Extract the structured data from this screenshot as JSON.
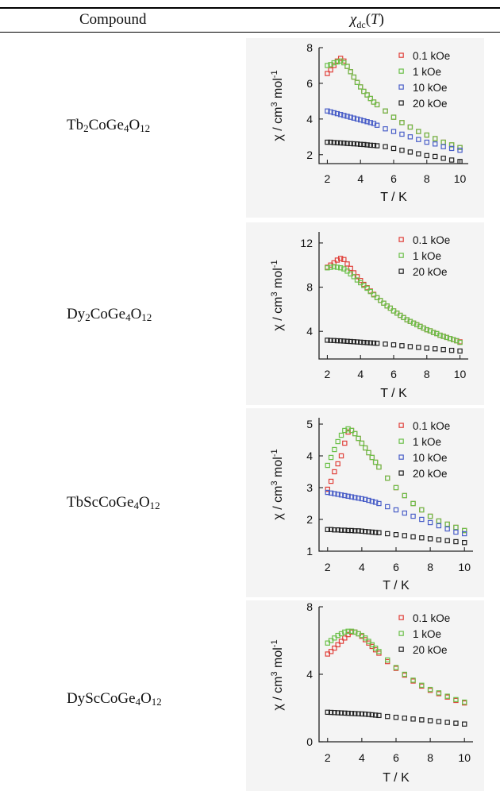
{
  "table": {
    "header": {
      "compound": "Compound",
      "chi_symbol": "χ",
      "chi_sub": "dc",
      "chi_arg_open": "(",
      "chi_arg_var": "T",
      "chi_arg_close": ")"
    },
    "rows": [
      {
        "compound": [
          "Tb",
          "2",
          "CoGe",
          "4",
          "O",
          "12"
        ]
      },
      {
        "compound": [
          "Dy",
          "2",
          "CoGe",
          "4",
          "O",
          "12"
        ]
      },
      {
        "compound": [
          "TbScCoGe",
          "4",
          "O",
          "12"
        ]
      },
      {
        "compound": [
          "DyScCoGe",
          "4",
          "O",
          "12"
        ]
      }
    ]
  },
  "axis_text": {
    "xlabel": "T / K",
    "ylabel_main": "χ / cm",
    "ylabel_sup1": "3",
    "ylabel_mid": " mol",
    "ylabel_sup2": "-1"
  },
  "colors": {
    "0.1 kOe": "#e0403a",
    "1 kOe": "#6cc04a",
    "10 kOe": "#4a5fc8",
    "20 kOe": "#222222"
  },
  "chart_data": [
    {
      "type": "scatter",
      "xlabel": "T / K",
      "ylabel": "χ / cm3 mol-1",
      "xlim": [
        1.5,
        10.5
      ],
      "ylim": [
        1.5,
        8
      ],
      "xticks": [
        2,
        4,
        6,
        8,
        10
      ],
      "yticks": [
        2,
        4,
        6,
        8
      ],
      "legend_position": "top-right",
      "series": [
        {
          "name": "0.1 kOe",
          "color": "#e0403a",
          "x": [
            2,
            2.2,
            2.4,
            2.6,
            2.8,
            3,
            3.2,
            3.4,
            3.6,
            3.8,
            4,
            4.2,
            4.4,
            4.6,
            4.8,
            5,
            5.5,
            6,
            6.5,
            7,
            7.5,
            8,
            8.5,
            9,
            9.5,
            10
          ],
          "y": [
            6.55,
            6.75,
            7.0,
            7.25,
            7.4,
            7.25,
            6.95,
            6.65,
            6.35,
            6.05,
            5.8,
            5.55,
            5.35,
            5.15,
            4.95,
            4.8,
            4.45,
            4.1,
            3.8,
            3.55,
            3.3,
            3.1,
            2.9,
            2.7,
            2.55,
            2.4
          ]
        },
        {
          "name": "1 kOe",
          "color": "#6cc04a",
          "x": [
            2,
            2.2,
            2.4,
            2.6,
            2.8,
            3,
            3.2,
            3.4,
            3.6,
            3.8,
            4,
            4.2,
            4.4,
            4.6,
            4.8,
            5,
            5.5,
            6,
            6.5,
            7,
            7.5,
            8,
            8.5,
            9,
            9.5,
            10
          ],
          "y": [
            7.0,
            7.05,
            7.15,
            7.2,
            7.25,
            7.15,
            6.95,
            6.65,
            6.35,
            6.05,
            5.8,
            5.55,
            5.35,
            5.15,
            4.95,
            4.8,
            4.45,
            4.1,
            3.8,
            3.55,
            3.3,
            3.1,
            2.9,
            2.7,
            2.55,
            2.4
          ]
        },
        {
          "name": "10 kOe",
          "color": "#4a5fc8",
          "x": [
            2,
            2.2,
            2.4,
            2.6,
            2.8,
            3,
            3.2,
            3.4,
            3.6,
            3.8,
            4,
            4.2,
            4.4,
            4.6,
            4.8,
            5,
            5.5,
            6,
            6.5,
            7,
            7.5,
            8,
            8.5,
            9,
            9.5,
            10
          ],
          "y": [
            4.45,
            4.4,
            4.35,
            4.3,
            4.25,
            4.2,
            4.15,
            4.1,
            4.05,
            4.0,
            3.95,
            3.9,
            3.85,
            3.8,
            3.75,
            3.65,
            3.45,
            3.3,
            3.15,
            3.0,
            2.85,
            2.7,
            2.6,
            2.45,
            2.35,
            2.25
          ]
        },
        {
          "name": "20 kOe",
          "color": "#222222",
          "x": [
            2,
            2.2,
            2.4,
            2.6,
            2.8,
            3,
            3.2,
            3.4,
            3.6,
            3.8,
            4,
            4.2,
            4.4,
            4.6,
            4.8,
            5,
            5.5,
            6,
            6.5,
            7,
            7.5,
            8,
            8.5,
            9,
            9.5,
            10
          ],
          "y": [
            2.7,
            2.7,
            2.68,
            2.67,
            2.66,
            2.65,
            2.63,
            2.62,
            2.61,
            2.6,
            2.58,
            2.57,
            2.55,
            2.53,
            2.52,
            2.5,
            2.45,
            2.35,
            2.25,
            2.15,
            2.05,
            1.95,
            1.9,
            1.8,
            1.7,
            1.62
          ]
        }
      ]
    },
    {
      "type": "scatter",
      "xlabel": "T / K",
      "ylabel": "χ / cm3 mol-1",
      "xlim": [
        1.5,
        10.5
      ],
      "ylim": [
        1.5,
        13
      ],
      "xticks": [
        2,
        4,
        6,
        8,
        10
      ],
      "yticks": [
        4,
        8,
        12
      ],
      "legend_position": "top-right",
      "series": [
        {
          "name": "0.1 kOe",
          "color": "#e0403a",
          "x": [
            2,
            2.2,
            2.4,
            2.6,
            2.8,
            3,
            3.2,
            3.4,
            3.6,
            3.8,
            4,
            4.2,
            4.4,
            4.6,
            4.8,
            5,
            5.2,
            5.4,
            5.6,
            5.8,
            6,
            6.2,
            6.4,
            6.6,
            6.8,
            7,
            7.2,
            7.4,
            7.6,
            7.8,
            8,
            8.2,
            8.4,
            8.6,
            8.8,
            9,
            9.2,
            9.4,
            9.6,
            9.8,
            10
          ],
          "y": [
            9.8,
            10.0,
            10.2,
            10.45,
            10.6,
            10.5,
            10.1,
            9.7,
            9.3,
            8.95,
            8.6,
            8.25,
            7.95,
            7.65,
            7.35,
            7.05,
            6.8,
            6.55,
            6.3,
            6.1,
            5.85,
            5.65,
            5.45,
            5.25,
            5.05,
            4.9,
            4.75,
            4.6,
            4.45,
            4.3,
            4.15,
            4.05,
            3.9,
            3.8,
            3.65,
            3.55,
            3.45,
            3.35,
            3.25,
            3.15,
            3.05
          ]
        },
        {
          "name": "1 kOe",
          "color": "#6cc04a",
          "x": [
            2,
            2.2,
            2.4,
            2.6,
            2.8,
            3,
            3.2,
            3.4,
            3.6,
            3.8,
            4,
            4.2,
            4.4,
            4.6,
            4.8,
            5,
            5.2,
            5.4,
            5.6,
            5.8,
            6,
            6.2,
            6.4,
            6.6,
            6.8,
            7,
            7.2,
            7.4,
            7.6,
            7.8,
            8,
            8.2,
            8.4,
            8.6,
            8.8,
            9,
            9.2,
            9.4,
            9.6,
            9.8,
            10
          ],
          "y": [
            9.75,
            9.8,
            9.85,
            9.8,
            9.75,
            9.65,
            9.45,
            9.2,
            8.95,
            8.65,
            8.4,
            8.15,
            7.9,
            7.6,
            7.3,
            7.05,
            6.8,
            6.55,
            6.3,
            6.1,
            5.85,
            5.65,
            5.45,
            5.25,
            5.05,
            4.9,
            4.75,
            4.6,
            4.45,
            4.3,
            4.15,
            4.05,
            3.9,
            3.8,
            3.65,
            3.55,
            3.45,
            3.35,
            3.25,
            3.15,
            3.0
          ]
        },
        {
          "name": "20 kOe",
          "color": "#222222",
          "x": [
            2,
            2.2,
            2.4,
            2.6,
            2.8,
            3,
            3.2,
            3.4,
            3.6,
            3.8,
            4,
            4.2,
            4.4,
            4.6,
            4.8,
            5,
            5.5,
            6,
            6.5,
            7,
            7.5,
            8,
            8.5,
            9,
            9.5,
            10
          ],
          "y": [
            3.2,
            3.18,
            3.17,
            3.15,
            3.14,
            3.12,
            3.1,
            3.08,
            3.06,
            3.04,
            3.02,
            3.0,
            2.98,
            2.96,
            2.94,
            2.92,
            2.85,
            2.78,
            2.7,
            2.62,
            2.55,
            2.48,
            2.42,
            2.35,
            2.28,
            2.22
          ]
        }
      ]
    },
    {
      "type": "scatter",
      "xlabel": "T / K",
      "ylabel": "χ / cm3 mol-1",
      "xlim": [
        1.5,
        10.5
      ],
      "ylim": [
        1,
        5.2
      ],
      "xticks": [
        2,
        4,
        6,
        8,
        10
      ],
      "yticks": [
        1,
        2,
        3,
        4,
        5
      ],
      "legend_position": "top-right",
      "series": [
        {
          "name": "0.1 kOe",
          "color": "#e0403a",
          "x": [
            2,
            2.2,
            2.4,
            2.6,
            2.8,
            3,
            3.2,
            3.4,
            3.6,
            3.8,
            4,
            4.2,
            4.4,
            4.6,
            4.8,
            5,
            5.5,
            6,
            6.5,
            7,
            7.5,
            8,
            8.5,
            9,
            9.5,
            10
          ],
          "y": [
            2.95,
            3.2,
            3.5,
            3.75,
            4.0,
            4.4,
            4.75,
            4.8,
            4.7,
            4.55,
            4.4,
            4.25,
            4.1,
            3.95,
            3.8,
            3.65,
            3.3,
            3.0,
            2.75,
            2.5,
            2.3,
            2.1,
            1.95,
            1.85,
            1.75,
            1.65
          ]
        },
        {
          "name": "1 kOe",
          "color": "#6cc04a",
          "x": [
            2,
            2.2,
            2.4,
            2.6,
            2.8,
            3,
            3.2,
            3.4,
            3.6,
            3.8,
            4,
            4.2,
            4.4,
            4.6,
            4.8,
            5,
            5.5,
            6,
            6.5,
            7,
            7.5,
            8,
            8.5,
            9,
            9.5,
            10
          ],
          "y": [
            3.7,
            3.95,
            4.2,
            4.45,
            4.65,
            4.8,
            4.85,
            4.8,
            4.7,
            4.55,
            4.4,
            4.25,
            4.1,
            3.95,
            3.8,
            3.65,
            3.3,
            3.0,
            2.75,
            2.5,
            2.3,
            2.1,
            1.95,
            1.85,
            1.75,
            1.65
          ]
        },
        {
          "name": "10 kOe",
          "color": "#4a5fc8",
          "x": [
            2,
            2.2,
            2.4,
            2.6,
            2.8,
            3,
            3.2,
            3.4,
            3.6,
            3.8,
            4,
            4.2,
            4.4,
            4.6,
            4.8,
            5,
            5.5,
            6,
            6.5,
            7,
            7.5,
            8,
            8.5,
            9,
            9.5,
            10
          ],
          "y": [
            2.85,
            2.83,
            2.81,
            2.79,
            2.77,
            2.75,
            2.73,
            2.71,
            2.69,
            2.67,
            2.65,
            2.63,
            2.6,
            2.57,
            2.54,
            2.5,
            2.4,
            2.3,
            2.2,
            2.1,
            2.0,
            1.9,
            1.8,
            1.7,
            1.6,
            1.55
          ]
        },
        {
          "name": "20 kOe",
          "color": "#222222",
          "x": [
            2,
            2.2,
            2.4,
            2.6,
            2.8,
            3,
            3.2,
            3.4,
            3.6,
            3.8,
            4,
            4.2,
            4.4,
            4.6,
            4.8,
            5,
            5.5,
            6,
            6.5,
            7,
            7.5,
            8,
            8.5,
            9,
            9.5,
            10
          ],
          "y": [
            1.68,
            1.68,
            1.67,
            1.67,
            1.66,
            1.66,
            1.65,
            1.65,
            1.64,
            1.64,
            1.63,
            1.62,
            1.61,
            1.6,
            1.59,
            1.58,
            1.55,
            1.52,
            1.49,
            1.45,
            1.42,
            1.39,
            1.36,
            1.33,
            1.3,
            1.27
          ]
        }
      ]
    },
    {
      "type": "scatter",
      "xlabel": "T / K",
      "ylabel": "χ / cm3 mol-1",
      "xlim": [
        1.5,
        10.5
      ],
      "ylim": [
        0,
        8
      ],
      "xticks": [
        2,
        4,
        6,
        8,
        10
      ],
      "yticks": [
        0,
        4,
        8
      ],
      "legend_position": "top-right",
      "series": [
        {
          "name": "0.1 kOe",
          "color": "#e0403a",
          "x": [
            2,
            2.2,
            2.4,
            2.6,
            2.8,
            3,
            3.2,
            3.4,
            3.6,
            3.8,
            4,
            4.2,
            4.4,
            4.6,
            4.8,
            5,
            5.5,
            6,
            6.5,
            7,
            7.5,
            8,
            8.5,
            9,
            9.5,
            10
          ],
          "y": [
            5.2,
            5.35,
            5.55,
            5.75,
            5.95,
            6.15,
            6.35,
            6.5,
            6.5,
            6.4,
            6.25,
            6.05,
            5.85,
            5.65,
            5.45,
            5.25,
            4.75,
            4.35,
            3.95,
            3.6,
            3.3,
            3.05,
            2.85,
            2.65,
            2.45,
            2.3
          ]
        },
        {
          "name": "1 kOe",
          "color": "#6cc04a",
          "x": [
            2,
            2.2,
            2.4,
            2.6,
            2.8,
            3,
            3.2,
            3.4,
            3.6,
            3.8,
            4,
            4.2,
            4.4,
            4.6,
            4.8,
            5,
            5.5,
            6,
            6.5,
            7,
            7.5,
            8,
            8.5,
            9,
            9.5,
            10
          ],
          "y": [
            5.85,
            6.0,
            6.15,
            6.3,
            6.4,
            6.5,
            6.55,
            6.55,
            6.5,
            6.4,
            6.3,
            6.15,
            5.95,
            5.75,
            5.55,
            5.35,
            4.85,
            4.4,
            4.0,
            3.65,
            3.35,
            3.1,
            2.9,
            2.7,
            2.5,
            2.35
          ]
        },
        {
          "name": "20 kOe",
          "color": "#222222",
          "x": [
            2,
            2.2,
            2.4,
            2.6,
            2.8,
            3,
            3.2,
            3.4,
            3.6,
            3.8,
            4,
            4.2,
            4.4,
            4.6,
            4.8,
            5,
            5.5,
            6,
            6.5,
            7,
            7.5,
            8,
            8.5,
            9,
            9.5,
            10
          ],
          "y": [
            1.75,
            1.74,
            1.73,
            1.72,
            1.71,
            1.7,
            1.69,
            1.68,
            1.67,
            1.66,
            1.65,
            1.64,
            1.62,
            1.6,
            1.58,
            1.56,
            1.5,
            1.45,
            1.4,
            1.35,
            1.3,
            1.25,
            1.2,
            1.15,
            1.1,
            1.05
          ]
        }
      ]
    }
  ]
}
